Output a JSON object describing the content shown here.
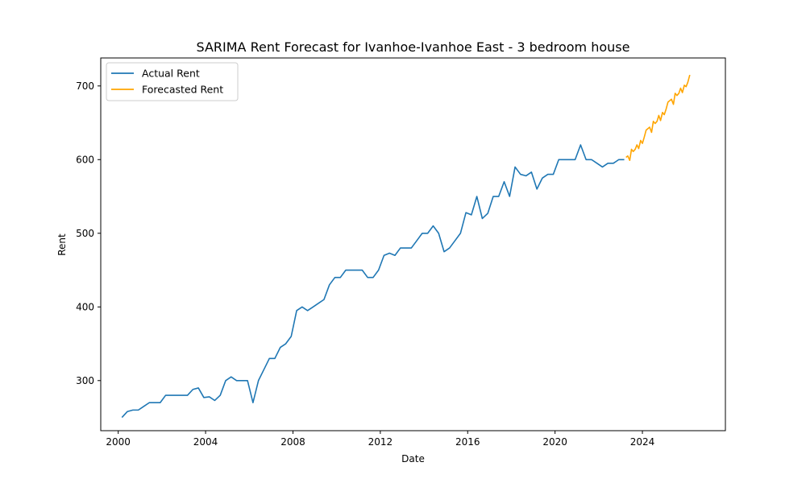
{
  "chart_data": {
    "type": "line",
    "title": "SARIMA Rent Forecast for Ivanhoe-Ivanhoe East - 3 bedroom house",
    "xlabel": "Date",
    "ylabel": "Rent",
    "xlim": [
      1999.2,
      2027.8
    ],
    "ylim": [
      232,
      738
    ],
    "x_ticks": [
      2000,
      2004,
      2008,
      2012,
      2016,
      2020,
      2024
    ],
    "y_ticks": [
      300,
      400,
      500,
      600,
      700
    ],
    "grid": false,
    "legend_position": "upper-left",
    "series": [
      {
        "name": "Actual Rent",
        "color": "#1f77b4",
        "points": [
          [
            2000.17,
            250
          ],
          [
            2000.42,
            258
          ],
          [
            2000.67,
            260
          ],
          [
            2000.92,
            260
          ],
          [
            2001.17,
            265
          ],
          [
            2001.42,
            270
          ],
          [
            2001.67,
            270
          ],
          [
            2001.92,
            270
          ],
          [
            2002.17,
            280
          ],
          [
            2002.42,
            280
          ],
          [
            2002.67,
            280
          ],
          [
            2002.92,
            280
          ],
          [
            2003.17,
            280
          ],
          [
            2003.42,
            288
          ],
          [
            2003.67,
            290
          ],
          [
            2003.92,
            277
          ],
          [
            2004.17,
            278
          ],
          [
            2004.42,
            273
          ],
          [
            2004.67,
            280
          ],
          [
            2004.92,
            300
          ],
          [
            2005.17,
            305
          ],
          [
            2005.42,
            300
          ],
          [
            2005.67,
            300
          ],
          [
            2005.92,
            300
          ],
          [
            2006.17,
            270
          ],
          [
            2006.42,
            300
          ],
          [
            2006.67,
            315
          ],
          [
            2006.92,
            330
          ],
          [
            2007.17,
            330
          ],
          [
            2007.42,
            345
          ],
          [
            2007.67,
            350
          ],
          [
            2007.92,
            360
          ],
          [
            2008.17,
            395
          ],
          [
            2008.42,
            400
          ],
          [
            2008.67,
            395
          ],
          [
            2008.92,
            400
          ],
          [
            2009.17,
            405
          ],
          [
            2009.42,
            410
          ],
          [
            2009.67,
            430
          ],
          [
            2009.92,
            440
          ],
          [
            2010.17,
            440
          ],
          [
            2010.42,
            450
          ],
          [
            2010.67,
            450
          ],
          [
            2010.92,
            450
          ],
          [
            2011.17,
            450
          ],
          [
            2011.42,
            440
          ],
          [
            2011.67,
            440
          ],
          [
            2011.92,
            450
          ],
          [
            2012.17,
            470
          ],
          [
            2012.42,
            473
          ],
          [
            2012.67,
            470
          ],
          [
            2012.92,
            480
          ],
          [
            2013.17,
            480
          ],
          [
            2013.42,
            480
          ],
          [
            2013.67,
            490
          ],
          [
            2013.92,
            500
          ],
          [
            2014.17,
            500
          ],
          [
            2014.42,
            510
          ],
          [
            2014.67,
            500
          ],
          [
            2014.92,
            475
          ],
          [
            2015.17,
            480
          ],
          [
            2015.42,
            490
          ],
          [
            2015.67,
            500
          ],
          [
            2015.92,
            528
          ],
          [
            2016.17,
            525
          ],
          [
            2016.42,
            550
          ],
          [
            2016.67,
            520
          ],
          [
            2016.92,
            527
          ],
          [
            2017.17,
            550
          ],
          [
            2017.42,
            550
          ],
          [
            2017.67,
            570
          ],
          [
            2017.92,
            550
          ],
          [
            2018.17,
            590
          ],
          [
            2018.42,
            580
          ],
          [
            2018.67,
            578
          ],
          [
            2018.92,
            583
          ],
          [
            2019.17,
            560
          ],
          [
            2019.42,
            575
          ],
          [
            2019.67,
            580
          ],
          [
            2019.92,
            580
          ],
          [
            2020.17,
            600
          ],
          [
            2020.42,
            600
          ],
          [
            2020.67,
            600
          ],
          [
            2020.92,
            600
          ],
          [
            2021.17,
            620
          ],
          [
            2021.42,
            600
          ],
          [
            2021.67,
            600
          ],
          [
            2021.92,
            595
          ],
          [
            2022.17,
            590
          ],
          [
            2022.42,
            595
          ],
          [
            2022.67,
            595
          ],
          [
            2022.92,
            600
          ],
          [
            2023.17,
            600
          ]
        ]
      },
      {
        "name": "Forecasted Rent",
        "color": "#ffa500",
        "points": [
          [
            2023.25,
            603
          ],
          [
            2023.33,
            605
          ],
          [
            2023.42,
            599
          ],
          [
            2023.5,
            614
          ],
          [
            2023.58,
            611
          ],
          [
            2023.67,
            614
          ],
          [
            2023.75,
            620
          ],
          [
            2023.83,
            615
          ],
          [
            2023.92,
            626
          ],
          [
            2024.0,
            622
          ],
          [
            2024.08,
            630
          ],
          [
            2024.17,
            640
          ],
          [
            2024.25,
            642
          ],
          [
            2024.33,
            644
          ],
          [
            2024.42,
            637
          ],
          [
            2024.5,
            652
          ],
          [
            2024.58,
            649
          ],
          [
            2024.67,
            652
          ],
          [
            2024.75,
            660
          ],
          [
            2024.83,
            653
          ],
          [
            2024.92,
            664
          ],
          [
            2025.0,
            661
          ],
          [
            2025.08,
            668
          ],
          [
            2025.17,
            678
          ],
          [
            2025.25,
            680
          ],
          [
            2025.33,
            682
          ],
          [
            2025.42,
            675
          ],
          [
            2025.5,
            690
          ],
          [
            2025.58,
            687
          ],
          [
            2025.67,
            690
          ],
          [
            2025.75,
            697
          ],
          [
            2025.83,
            691
          ],
          [
            2025.92,
            701
          ],
          [
            2026.0,
            699
          ],
          [
            2026.08,
            705
          ],
          [
            2026.17,
            715
          ]
        ]
      }
    ]
  }
}
